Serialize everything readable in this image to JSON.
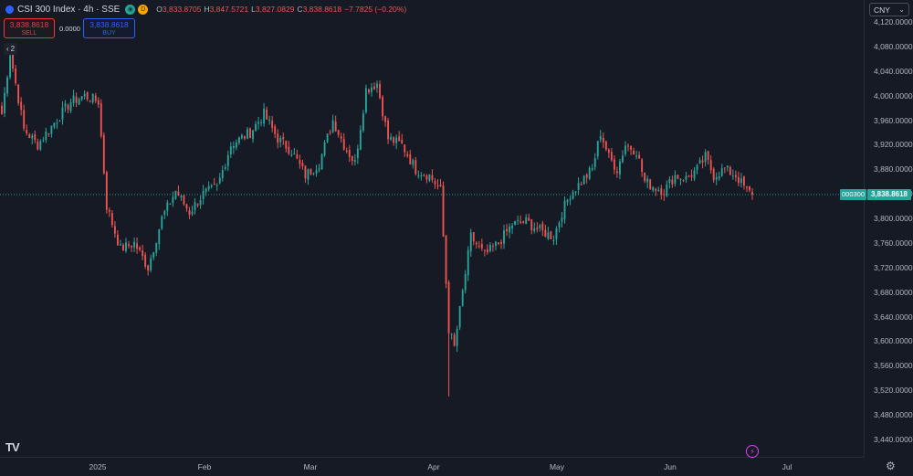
{
  "legend": {
    "title": "CSI 300 Index · 4h · SSE",
    "badge_eye": "◉",
    "badge_d": "D",
    "ohlc": [
      {
        "key": "O",
        "value": "3,833.8705"
      },
      {
        "key": "H",
        "value": "3,847.5721"
      },
      {
        "key": "L",
        "value": "3,827.0829"
      },
      {
        "key": "C",
        "value": "3,838.8618"
      },
      {
        "key": "",
        "value": "−7.7825 (−0.20%)"
      }
    ]
  },
  "trade": {
    "sell_price": "3,838.8618",
    "sell_label": "SELL",
    "spread": "0.0000",
    "buy_price": "3,838.8618",
    "buy_label": "BUY"
  },
  "indicator_toggle": {
    "chevron": "‹",
    "count": "2"
  },
  "currency": {
    "label": "CNY",
    "chevron": "⌄"
  },
  "last_price": {
    "symbol": "000300",
    "value": "3,838.8618"
  },
  "colors": {
    "up": "#26a69a",
    "down": "#ef5350",
    "background": "#161a25",
    "price_line": "#26a69a"
  },
  "price_axis": [
    "4,120.0000",
    "4,080.0000",
    "4,040.0000",
    "4,000.0000",
    "3,960.0000",
    "3,920.0000",
    "3,880.0000",
    "3,840.0000",
    "3,800.0000",
    "3,760.0000",
    "3,720.0000",
    "3,680.0000",
    "3,640.0000",
    "3,600.0000",
    "3,560.0000",
    "3,520.0000",
    "3,480.0000",
    "3,440.0000"
  ],
  "time_axis": [
    {
      "label": "2025"
    },
    {
      "label": "Feb"
    },
    {
      "label": "Mar"
    },
    {
      "label": "Apr"
    },
    {
      "label": "May"
    },
    {
      "label": "Jun"
    },
    {
      "label": "Jul"
    }
  ],
  "icons": {
    "logo": "tradingview-logo-icon",
    "lightning": "lightning-icon",
    "settings": "gear-icon"
  },
  "chart_data": {
    "type": "candlestick",
    "interval": "4h",
    "ylim": [
      3420,
      4140
    ],
    "x_ticks": [
      "2025",
      "Feb",
      "Mar",
      "Apr",
      "May",
      "Jun",
      "Jul"
    ],
    "last_close": 3838.8618,
    "anchors": [
      {
        "i": 0,
        "c": 3970
      },
      {
        "i": 3,
        "c": 4070
      },
      {
        "i": 8,
        "c": 3945
      },
      {
        "i": 13,
        "c": 3920
      },
      {
        "i": 18,
        "c": 3950
      },
      {
        "i": 25,
        "c": 3990
      },
      {
        "i": 30,
        "c": 4000
      },
      {
        "i": 35,
        "c": 3990
      },
      {
        "i": 38,
        "c": 3820
      },
      {
        "i": 43,
        "c": 3750
      },
      {
        "i": 48,
        "c": 3760
      },
      {
        "i": 53,
        "c": 3720
      },
      {
        "i": 58,
        "c": 3800
      },
      {
        "i": 63,
        "c": 3845
      },
      {
        "i": 68,
        "c": 3810
      },
      {
        "i": 73,
        "c": 3840
      },
      {
        "i": 78,
        "c": 3850
      },
      {
        "i": 83,
        "c": 3920
      },
      {
        "i": 90,
        "c": 3940
      },
      {
        "i": 95,
        "c": 3970
      },
      {
        "i": 100,
        "c": 3930
      },
      {
        "i": 105,
        "c": 3910
      },
      {
        "i": 110,
        "c": 3870
      },
      {
        "i": 115,
        "c": 3890
      },
      {
        "i": 120,
        "c": 3960
      },
      {
        "i": 124,
        "c": 3920
      },
      {
        "i": 128,
        "c": 3890
      },
      {
        "i": 132,
        "c": 4010
      },
      {
        "i": 136,
        "c": 4020
      },
      {
        "i": 140,
        "c": 3930
      },
      {
        "i": 145,
        "c": 3920
      },
      {
        "i": 150,
        "c": 3880
      },
      {
        "i": 155,
        "c": 3870
      },
      {
        "i": 159,
        "c": 3845
      },
      {
        "i": 162,
        "c": 3620
      },
      {
        "i": 164,
        "c": 3590
      },
      {
        "i": 167,
        "c": 3680
      },
      {
        "i": 170,
        "c": 3770
      },
      {
        "i": 175,
        "c": 3740
      },
      {
        "i": 180,
        "c": 3760
      },
      {
        "i": 185,
        "c": 3790
      },
      {
        "i": 190,
        "c": 3795
      },
      {
        "i": 195,
        "c": 3780
      },
      {
        "i": 200,
        "c": 3770
      },
      {
        "i": 203,
        "c": 3810
      },
      {
        "i": 206,
        "c": 3840
      },
      {
        "i": 210,
        "c": 3860
      },
      {
        "i": 214,
        "c": 3880
      },
      {
        "i": 217,
        "c": 3940
      },
      {
        "i": 220,
        "c": 3900
      },
      {
        "i": 223,
        "c": 3880
      },
      {
        "i": 226,
        "c": 3920
      },
      {
        "i": 230,
        "c": 3910
      },
      {
        "i": 233,
        "c": 3860
      },
      {
        "i": 237,
        "c": 3850
      },
      {
        "i": 240,
        "c": 3845
      },
      {
        "i": 244,
        "c": 3870
      },
      {
        "i": 248,
        "c": 3865
      },
      {
        "i": 252,
        "c": 3880
      },
      {
        "i": 255,
        "c": 3900
      },
      {
        "i": 258,
        "c": 3870
      },
      {
        "i": 262,
        "c": 3880
      },
      {
        "i": 266,
        "c": 3870
      },
      {
        "i": 270,
        "c": 3845
      },
      {
        "i": 272,
        "c": 3838.86
      }
    ]
  }
}
